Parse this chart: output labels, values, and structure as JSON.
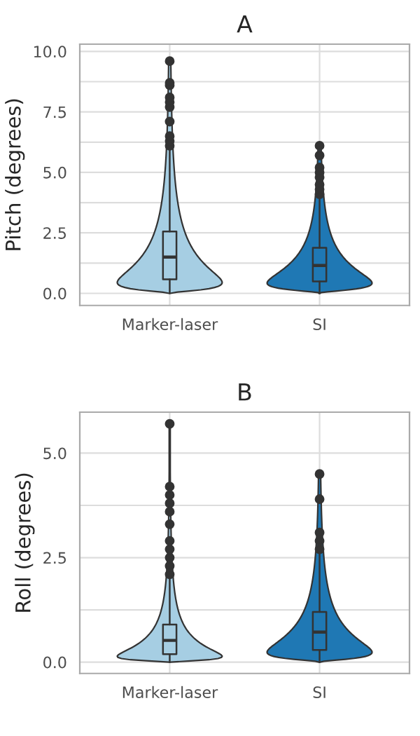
{
  "chart_data": [
    {
      "type": "box",
      "title": "A",
      "ylabel": "Pitch (degrees)",
      "categories": [
        "Marker-laser",
        "SI"
      ],
      "colors": [
        "#a6cee3",
        "#1f78b4"
      ],
      "boxes": [
        {
          "low": 0,
          "q1": 0.58,
          "median": 1.5,
          "q3": 2.56,
          "high": 6.0,
          "outliers": [
            6.1,
            6.3,
            6.5,
            7.1,
            7.7,
            7.9,
            8.1,
            8.6,
            8.7,
            9.6
          ]
        },
        {
          "low": 0,
          "q1": 0.49,
          "median": 1.15,
          "q3": 1.88,
          "high": 4.0,
          "outliers": [
            4.1,
            4.3,
            4.5,
            4.8,
            5.0,
            5.2,
            5.7,
            6.1
          ]
        }
      ],
      "ylim": [
        -0.5,
        10.3
      ],
      "yticks": [
        {
          "value": 0,
          "label": "0.0"
        },
        {
          "value": 1.25,
          "label": null
        },
        {
          "value": 2.5,
          "label": "2.5"
        },
        {
          "value": 3.75,
          "label": null
        },
        {
          "value": 5,
          "label": "5.0"
        },
        {
          "value": 6.25,
          "label": null
        },
        {
          "value": 7.5,
          "label": "7.5"
        },
        {
          "value": 8.75,
          "label": null
        },
        {
          "value": 10,
          "label": "10.0"
        }
      ],
      "grid": true
    },
    {
      "type": "box",
      "title": "B",
      "ylabel": "Roll (degrees)",
      "categories": [
        "Marker-laser",
        "SI"
      ],
      "colors": [
        "#a6cee3",
        "#1f78b4"
      ],
      "boxes": [
        {
          "low": 0,
          "q1": 0.19,
          "median": 0.52,
          "q3": 0.9,
          "high": 2.0,
          "outliers": [
            2.1,
            2.3,
            2.5,
            2.7,
            2.9,
            3.3,
            3.6,
            3.8,
            4.0,
            4.2,
            5.7
          ]
        },
        {
          "low": 0,
          "q1": 0.29,
          "median": 0.72,
          "q3": 1.2,
          "high": 2.6,
          "outliers": [
            2.7,
            2.9,
            3.1,
            3.9,
            4.5
          ]
        }
      ],
      "ylim": [
        -0.27,
        5.98
      ],
      "yticks": [
        {
          "value": 0,
          "label": "0.0"
        },
        {
          "value": 1.25,
          "label": null
        },
        {
          "value": 2.5,
          "label": "2.5"
        },
        {
          "value": 3.75,
          "label": null
        },
        {
          "value": 5,
          "label": "5.0"
        }
      ],
      "grid": true
    }
  ]
}
